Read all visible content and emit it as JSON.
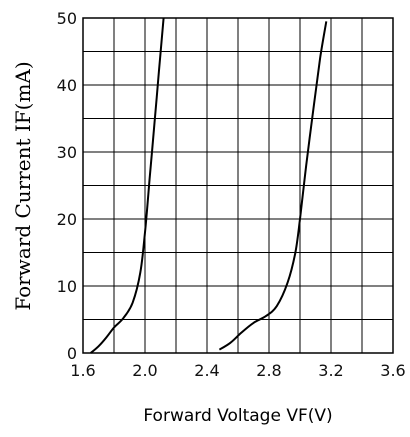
{
  "chart_data": {
    "type": "line",
    "title": "",
    "xlabel": "Forward Voltage VF(V)",
    "ylabel": "Forward Current IF(mA)",
    "xlim": [
      1.6,
      3.6
    ],
    "ylim": [
      0,
      50
    ],
    "grid": true,
    "x_ticks": [
      "1.6",
      "2.0",
      "2.4",
      "2.8",
      "3.2",
      "3.6"
    ],
    "y_ticks": [
      "0",
      "10",
      "20",
      "30",
      "40",
      "50"
    ],
    "series": [
      {
        "points": [
          [
            1.65,
            0
          ],
          [
            1.7,
            1
          ],
          [
            1.75,
            2.3
          ],
          [
            1.8,
            3.8
          ],
          [
            1.86,
            5.2
          ],
          [
            1.92,
            7.5
          ],
          [
            1.97,
            12
          ],
          [
            2.0,
            18
          ],
          [
            2.03,
            26
          ],
          [
            2.06,
            34
          ],
          [
            2.09,
            42
          ],
          [
            2.12,
            50
          ]
        ]
      },
      {
        "points": [
          [
            2.48,
            0.5
          ],
          [
            2.55,
            1.5
          ],
          [
            2.62,
            3
          ],
          [
            2.7,
            4.5
          ],
          [
            2.78,
            5.5
          ],
          [
            2.85,
            7
          ],
          [
            2.92,
            10.5
          ],
          [
            2.97,
            15
          ],
          [
            3.0,
            20
          ],
          [
            3.04,
            28
          ],
          [
            3.09,
            37
          ],
          [
            3.13,
            44
          ],
          [
            3.17,
            49.5
          ]
        ]
      }
    ]
  }
}
